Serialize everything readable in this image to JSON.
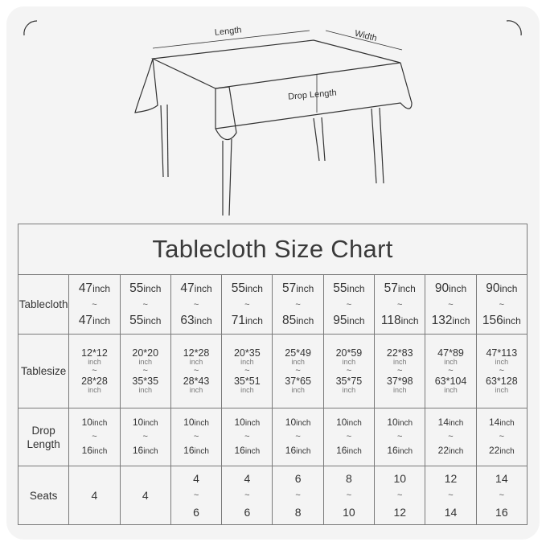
{
  "diagram": {
    "length_label": "Length",
    "width_label": "Width",
    "drop_label": "Drop Length"
  },
  "chart_data": {
    "type": "table",
    "title": "Tablecloth Size Chart",
    "row_headers": [
      "Tablecloth",
      "Tablesize",
      "Drop Length",
      "Seats"
    ],
    "unit": "inch",
    "separator": "~",
    "tablecloth": [
      [
        "47",
        "47"
      ],
      [
        "55",
        "55"
      ],
      [
        "47",
        "63"
      ],
      [
        "55",
        "71"
      ],
      [
        "57",
        "85"
      ],
      [
        "55",
        "95"
      ],
      [
        "57",
        "118"
      ],
      [
        "90",
        "132"
      ],
      [
        "90",
        "156"
      ]
    ],
    "tablesize": [
      [
        "12*12",
        "28*28"
      ],
      [
        "20*20",
        "35*35"
      ],
      [
        "12*28",
        "28*43"
      ],
      [
        "20*35",
        "35*51"
      ],
      [
        "25*49",
        "37*65"
      ],
      [
        "20*59",
        "35*75"
      ],
      [
        "22*83",
        "37*98"
      ],
      [
        "47*89",
        "63*104"
      ],
      [
        "47*113",
        "63*128"
      ]
    ],
    "drop_length": [
      [
        "10",
        "16"
      ],
      [
        "10",
        "16"
      ],
      [
        "10",
        "16"
      ],
      [
        "10",
        "16"
      ],
      [
        "10",
        "16"
      ],
      [
        "10",
        "16"
      ],
      [
        "10",
        "16"
      ],
      [
        "14",
        "22"
      ],
      [
        "14",
        "22"
      ]
    ],
    "seats": [
      [
        "4"
      ],
      [
        "4"
      ],
      [
        "4",
        "6"
      ],
      [
        "4",
        "6"
      ],
      [
        "6",
        "8"
      ],
      [
        "8",
        "10"
      ],
      [
        "10",
        "12"
      ],
      [
        "12",
        "14"
      ],
      [
        "14",
        "16"
      ]
    ]
  }
}
